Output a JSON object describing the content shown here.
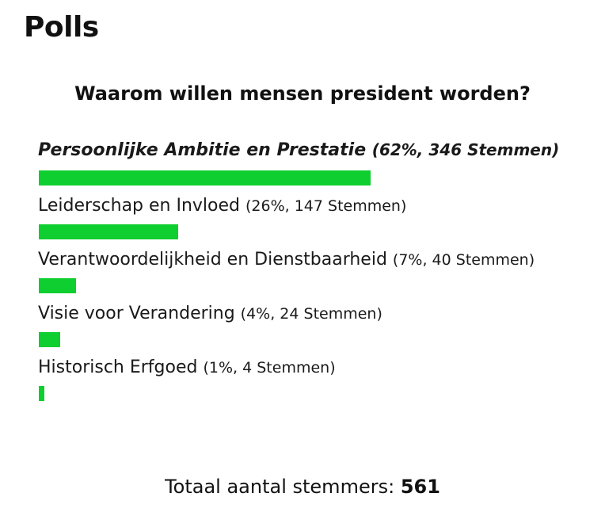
{
  "widget": {
    "title": "Polls"
  },
  "poll": {
    "question": "Waarom willen mensen president worden?",
    "bar_color": "#0fce2f",
    "max_scale_percent": 62,
    "options": [
      {
        "label": "Persoonlijke Ambitie en Prestatie",
        "stats": "(62%, 346 Stemmen)",
        "percent": 62,
        "votes": 346,
        "winner": true
      },
      {
        "label": "Leiderschap en Invloed",
        "stats": "(26%, 147 Stemmen)",
        "percent": 26,
        "votes": 147,
        "winner": false
      },
      {
        "label": "Verantwoordelijkheid en Dienstbaarheid",
        "stats": "(7%, 40 Stemmen)",
        "percent": 7,
        "votes": 40,
        "winner": false
      },
      {
        "label": "Visie voor Verandering",
        "stats": "(4%, 24 Stemmen)",
        "percent": 4,
        "votes": 24,
        "winner": false
      },
      {
        "label": "Historisch Erfgoed",
        "stats": "(1%, 4 Stemmen)",
        "percent": 1,
        "votes": 4,
        "winner": false
      }
    ],
    "total_label": "Totaal aantal stemmers:",
    "total_count": "561"
  }
}
